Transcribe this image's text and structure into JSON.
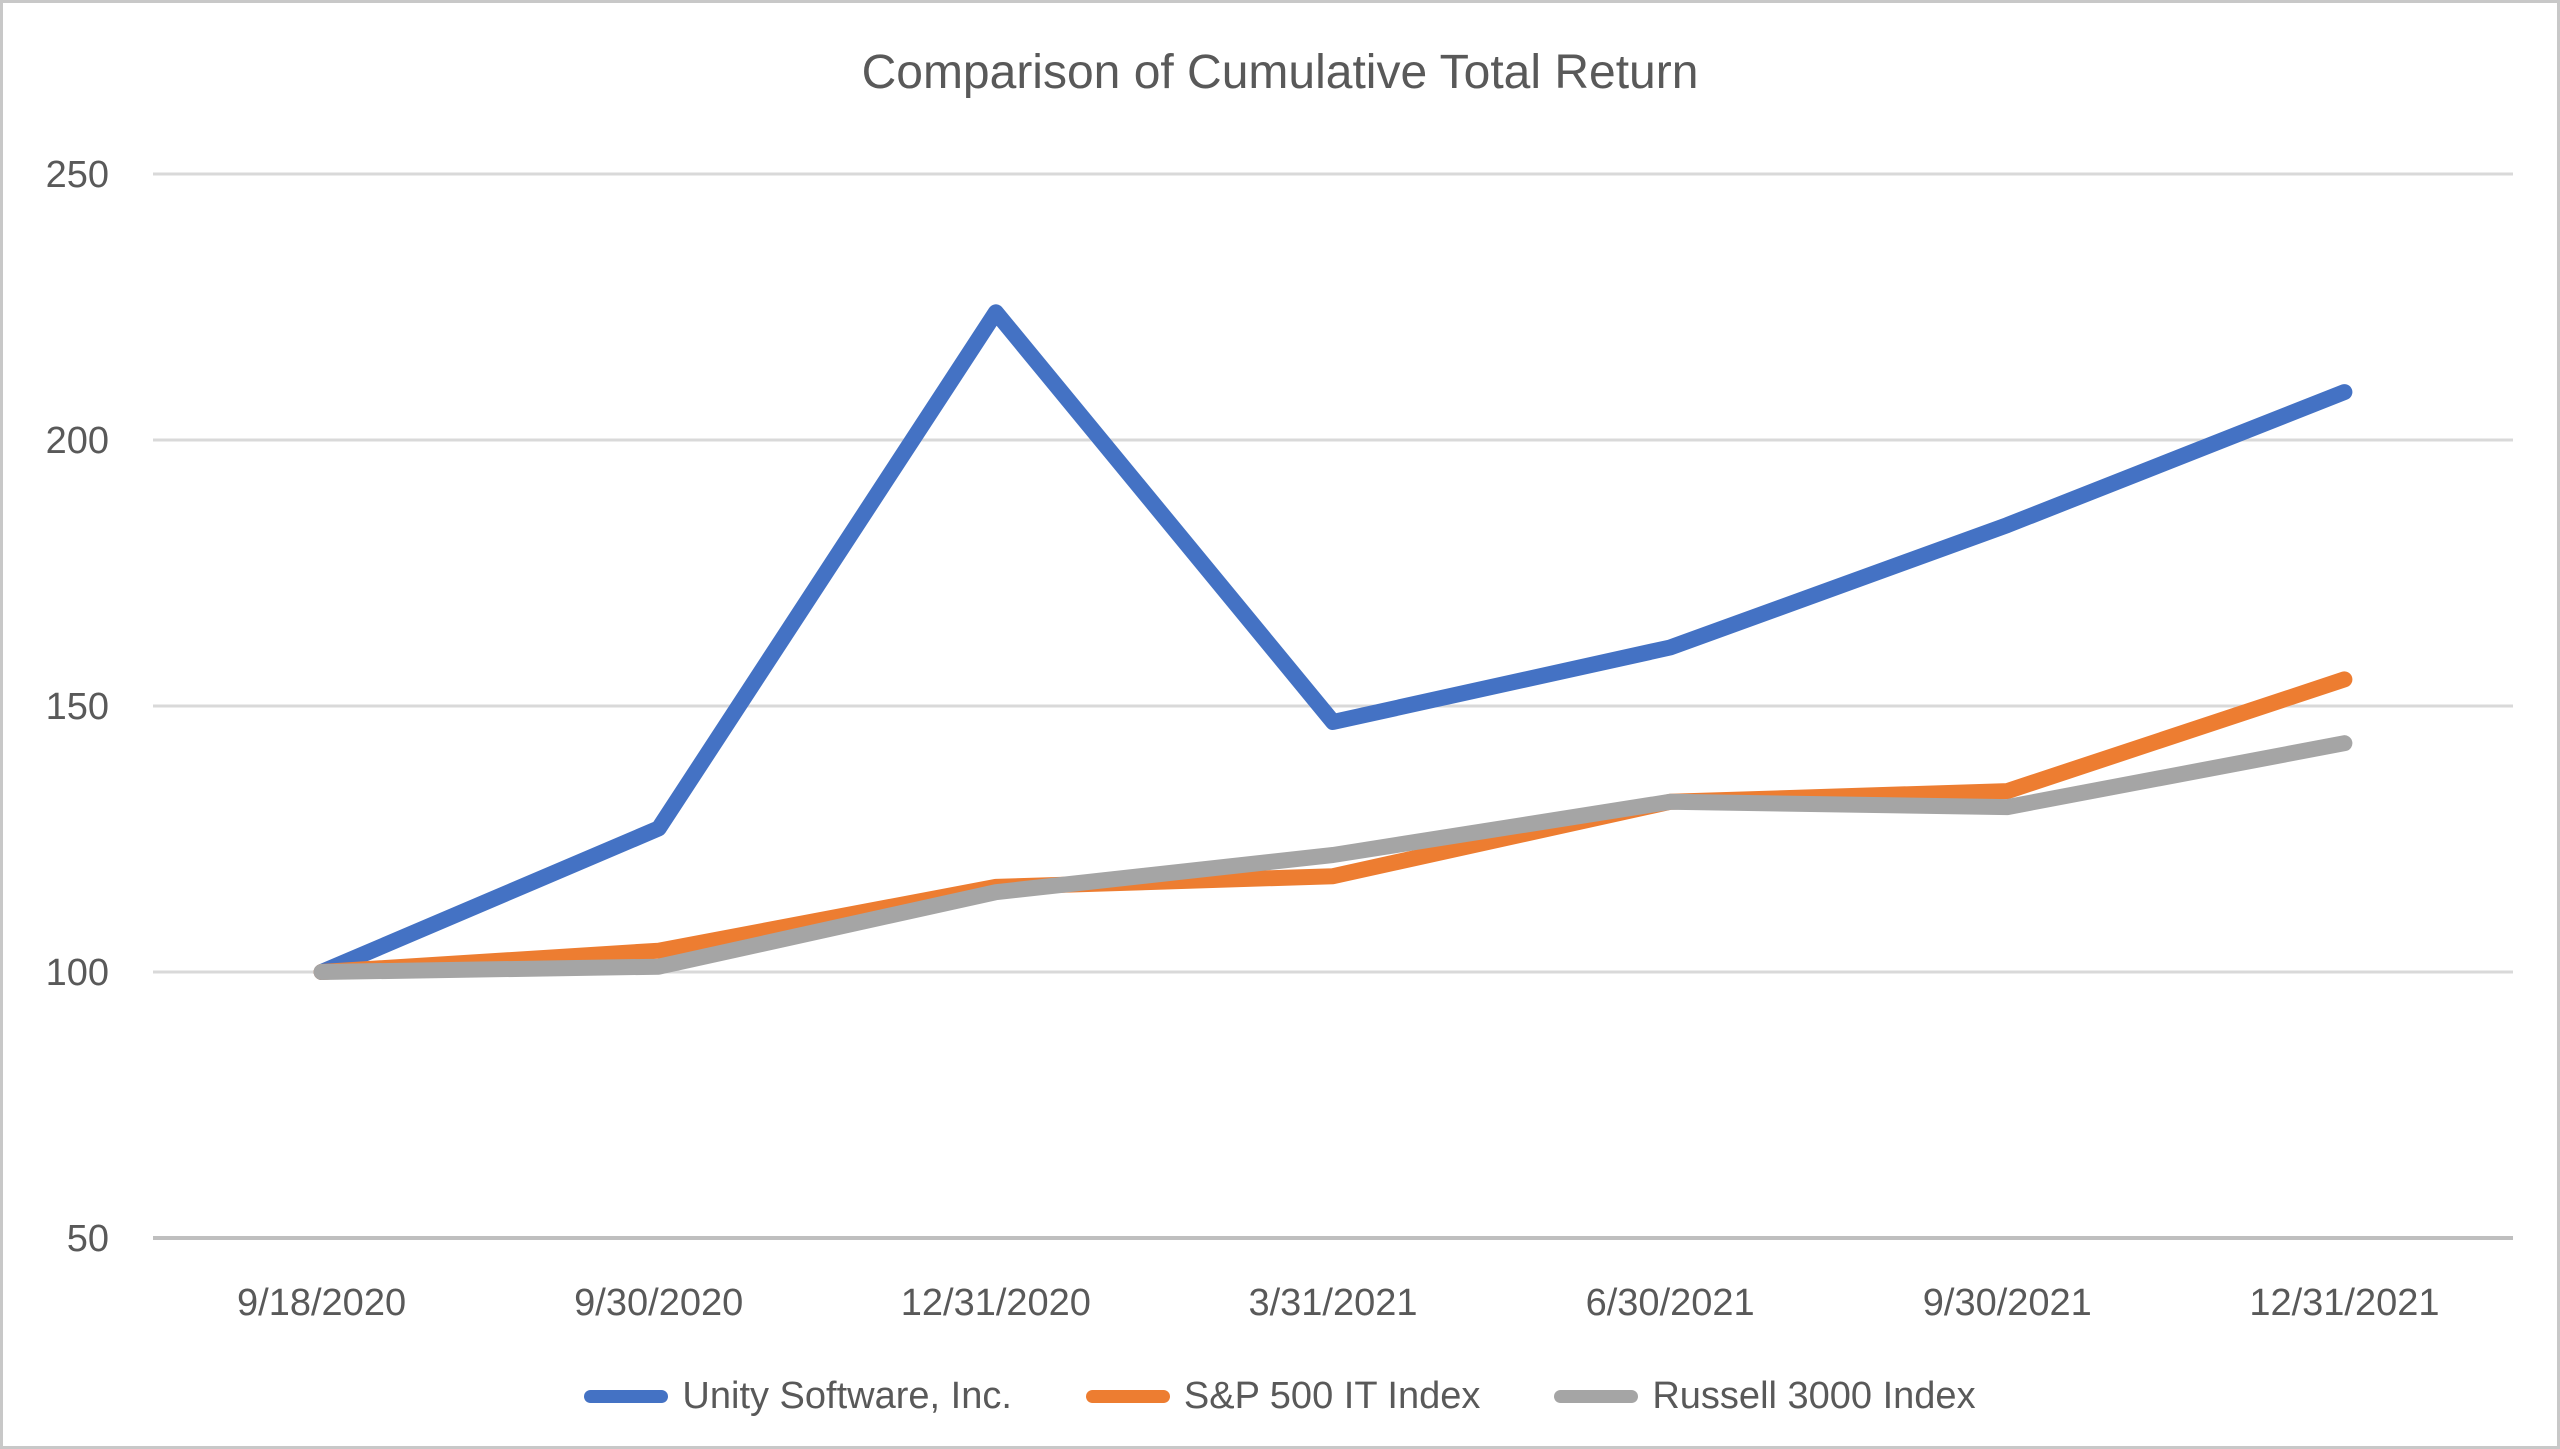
{
  "title": "Comparison of Cumulative Total Return",
  "colors": {
    "background": "#ffffff",
    "frame_border": "#c8c8c8",
    "text": "#595959",
    "gridline": "#d9d9d9",
    "axis_line": "#bfbfbf",
    "series_blue": "#4472C4",
    "series_orange": "#ED7D31",
    "series_gray": "#A5A5A5"
  },
  "chart_data": {
    "type": "line",
    "title": "Comparison of Cumulative Total Return",
    "xlabel": "",
    "ylabel": "",
    "categories": [
      "9/18/2020",
      "9/30/2020",
      "12/31/2020",
      "3/31/2021",
      "6/30/2021",
      "9/30/2021",
      "12/31/2021"
    ],
    "series": [
      {
        "name": "Unity Software, Inc.",
        "color": "#4472C4",
        "values": [
          100,
          127,
          224,
          147,
          161,
          184,
          209
        ]
      },
      {
        "name": "S&P 500 IT Index",
        "color": "#ED7D31",
        "values": [
          100,
          104,
          116,
          118,
          132,
          134,
          155
        ]
      },
      {
        "name": "Russell 3000 Index",
        "color": "#A5A5A5",
        "values": [
          100,
          101,
          115,
          122,
          132,
          131,
          143
        ]
      }
    ],
    "ylim": [
      50,
      250
    ],
    "yticks": [
      250,
      200,
      150,
      100,
      50
    ],
    "grid": true,
    "legend_position": "bottom"
  }
}
